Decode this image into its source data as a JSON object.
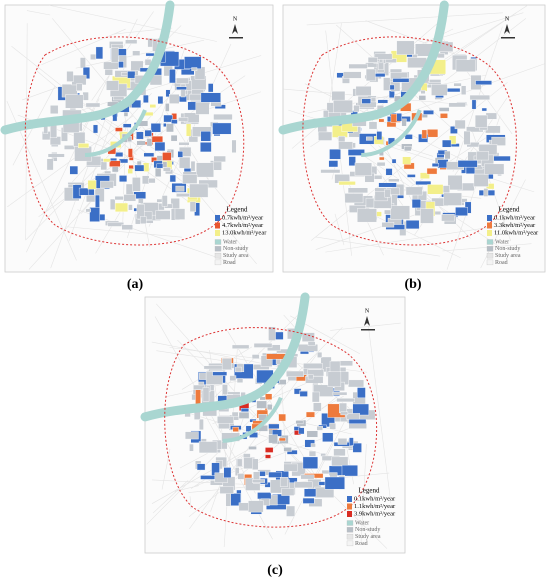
{
  "panels": [
    {
      "label": "(a)",
      "compass": "N",
      "legend": {
        "title": "Legend",
        "items": [
          {
            "text": "0.7kwh/m²/year",
            "color": "#3b6fc6"
          },
          {
            "text": "4.7kwh/m²/year",
            "color": "#e8552e"
          },
          {
            "text": "13.0kwh/m²/year",
            "color": "#f3ef8a"
          }
        ],
        "layers": [
          "Water",
          "Non-study",
          "Study area",
          "Road"
        ]
      }
    },
    {
      "label": "(b)",
      "compass": "N",
      "legend": {
        "title": "Legend",
        "items": [
          {
            "text": "0.1kwh/m²/year",
            "color": "#3b6fc6"
          },
          {
            "text": "3.3kwh/m²/year",
            "color": "#ee7a3c"
          },
          {
            "text": "11.0kwh/m²/year",
            "color": "#f3ef8a"
          }
        ],
        "layers": [
          "Water",
          "Non-study",
          "Study area",
          "Road"
        ]
      }
    },
    {
      "label": "(c)",
      "compass": "N",
      "legend": {
        "title": "Legend",
        "items": [
          {
            "text": "0.1kwh/m²/year",
            "color": "#3b6fc6"
          },
          {
            "text": "1.1kwh/m²/year",
            "color": "#ee7a3c"
          },
          {
            "text": "3.9kwh/m²/year",
            "color": "#d92b22"
          }
        ],
        "layers": [
          "Water",
          "Non-study",
          "Study area",
          "Road"
        ]
      }
    }
  ]
}
